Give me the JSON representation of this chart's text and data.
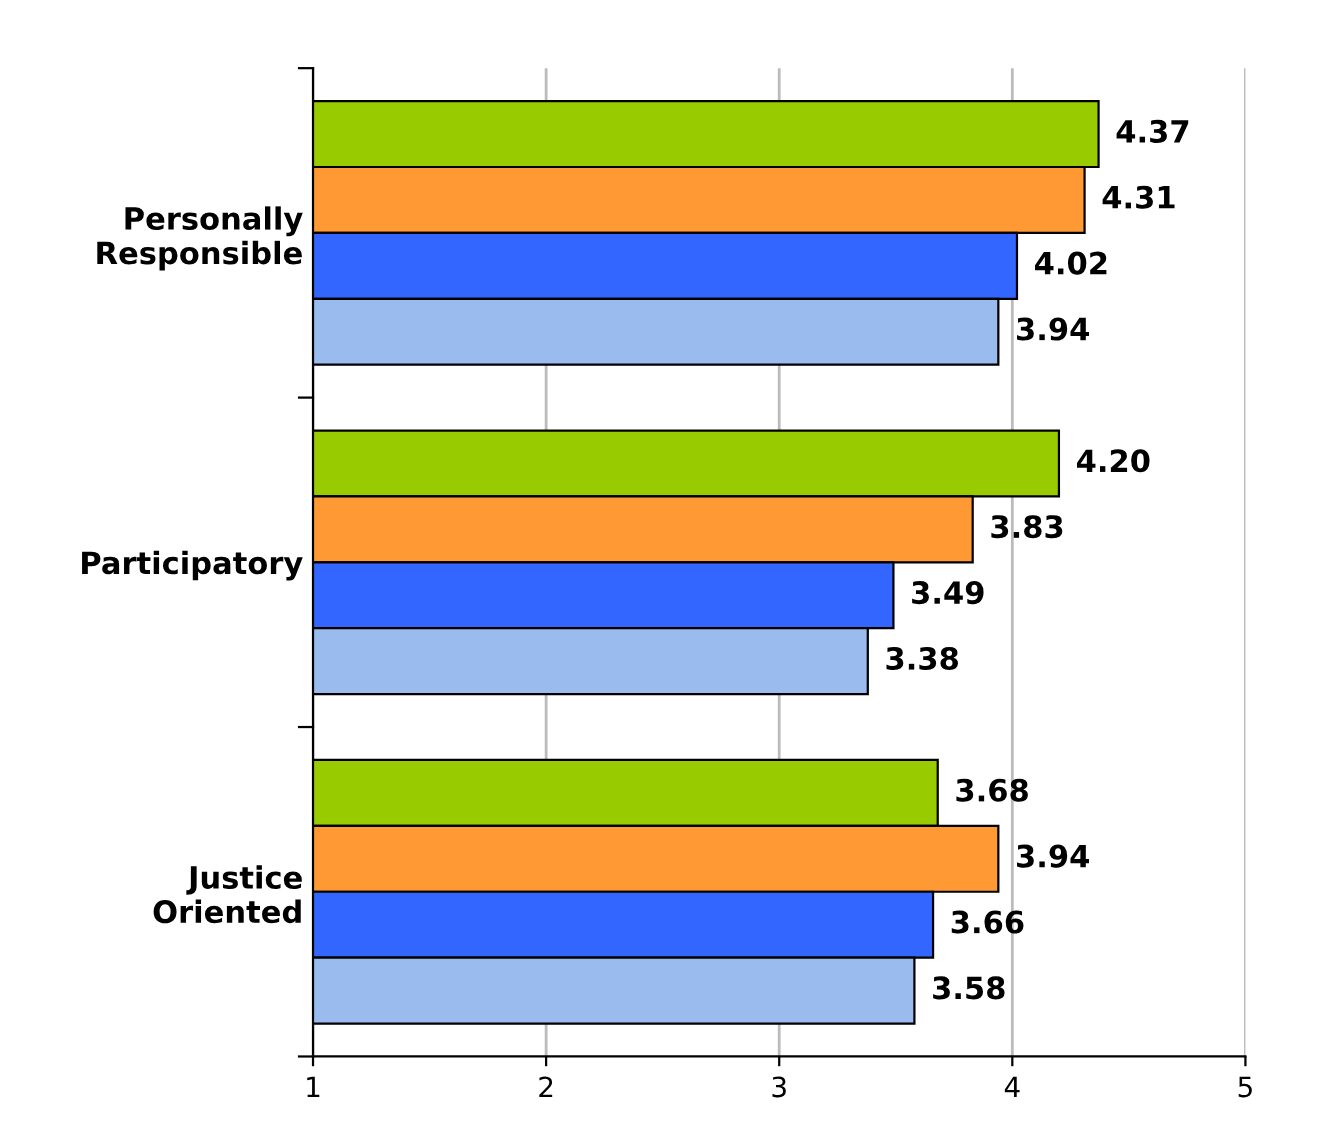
{
  "chart_data": {
    "type": "bar",
    "orientation": "horizontal",
    "categories": [
      "Personally\nResponsible",
      "Participatory",
      "Justice\nOriented"
    ],
    "series": [
      {
        "color": "#99cc00",
        "values": [
          4.37,
          4.2,
          3.68
        ],
        "value_labels": [
          "4.37",
          "4.20",
          "3.68"
        ]
      },
      {
        "color": "#ff9933",
        "values": [
          4.31,
          3.83,
          3.94
        ],
        "value_labels": [
          "4.31",
          "3.83",
          "3.94"
        ]
      },
      {
        "color": "#3366ff",
        "values": [
          4.02,
          3.49,
          3.66
        ],
        "value_labels": [
          "4.02",
          "3.49",
          "3.66"
        ]
      },
      {
        "color": "#99bbee",
        "values": [
          3.94,
          3.38,
          3.58
        ],
        "value_labels": [
          "3.94",
          "3.38",
          "3.58"
        ]
      }
    ],
    "xlim": [
      1,
      5
    ],
    "xticks": [
      1,
      2,
      3,
      4,
      5
    ],
    "grid": "x",
    "legend": false
  }
}
